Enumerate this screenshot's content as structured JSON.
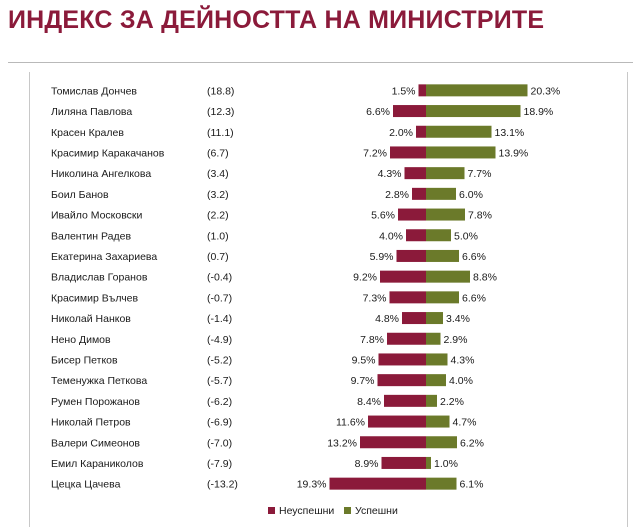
{
  "title": "ИНДЕКС ЗА ДЕЙНОСТТА НА МИНИСТРИТЕ",
  "colors": {
    "title": "#8b1a3a",
    "unsuccessful": "#8b1a3a",
    "successful": "#6b7a2a"
  },
  "chart_data": {
    "type": "bar",
    "orientation": "horizontal-diverging",
    "title": "ИНДЕКС ЗА ДЕЙНОСТТА НА МИНИСТРИТЕ",
    "legend_position": "bottom",
    "categories": [
      "Томислав Дончев",
      "Лиляна Павлова",
      "Красен Кралев",
      "Красимир Каракачанов",
      "Николина Ангелкова",
      "Боил Банов",
      "Ивайло Московски",
      "Валентин Радев",
      "Екатерина Захариева",
      "Владислав Горанов",
      "Красимир Вълчев",
      "Николай Нанков",
      "Нено Димов",
      "Бисер Петков",
      "Теменужка Петкова",
      "Румен Порожанов",
      "Николай Петров",
      "Валери Симеонов",
      "Емил Караниколов",
      "Цецка Цачева"
    ],
    "index_values": [
      "(18.8)",
      "(12.3)",
      "(11.1)",
      "(6.7)",
      "(3.4)",
      "(3.2)",
      "(2.2)",
      "(1.0)",
      "(0.7)",
      "(-0.4)",
      "(-0.7)",
      "(-1.4)",
      "(-4.9)",
      "(-5.2)",
      "(-5.7)",
      "(-6.2)",
      "(-6.9)",
      "(-7.0)",
      "(-7.9)",
      "(-13.2)"
    ],
    "series": [
      {
        "name": "Неуспешни",
        "values": [
          1.5,
          6.6,
          2.0,
          7.2,
          4.3,
          2.8,
          5.6,
          4.0,
          5.9,
          9.2,
          7.3,
          4.8,
          7.8,
          9.5,
          9.7,
          8.4,
          11.6,
          13.2,
          8.9,
          19.3
        ],
        "labels": [
          "1.5%",
          "6.6%",
          "2.0%",
          "7.2%",
          "4.3%",
          "2.8%",
          "5.6%",
          "4.0%",
          "5.9%",
          "9.2%",
          "7.3%",
          "4.8%",
          "7.8%",
          "9.5%",
          "9.7%",
          "8.4%",
          "11.6%",
          "13.2%",
          "8.9%",
          "19.3%"
        ]
      },
      {
        "name": "Успешни",
        "values": [
          20.3,
          18.9,
          13.1,
          13.9,
          7.7,
          6.0,
          7.8,
          5.0,
          6.6,
          8.8,
          6.6,
          3.4,
          2.9,
          4.3,
          4.0,
          2.2,
          4.7,
          6.2,
          1.0,
          6.1
        ],
        "labels": [
          "20.3%",
          "18.9%",
          "13.1%",
          "13.9%",
          "7.7%",
          "6.0%",
          "7.8%",
          "5.0%",
          "6.6%",
          "8.8%",
          "6.6%",
          "3.4%",
          "2.9%",
          "4.3%",
          "4.0%",
          "2.2%",
          "4.7%",
          "6.2%",
          "1.0%",
          "6.1%"
        ]
      }
    ]
  }
}
